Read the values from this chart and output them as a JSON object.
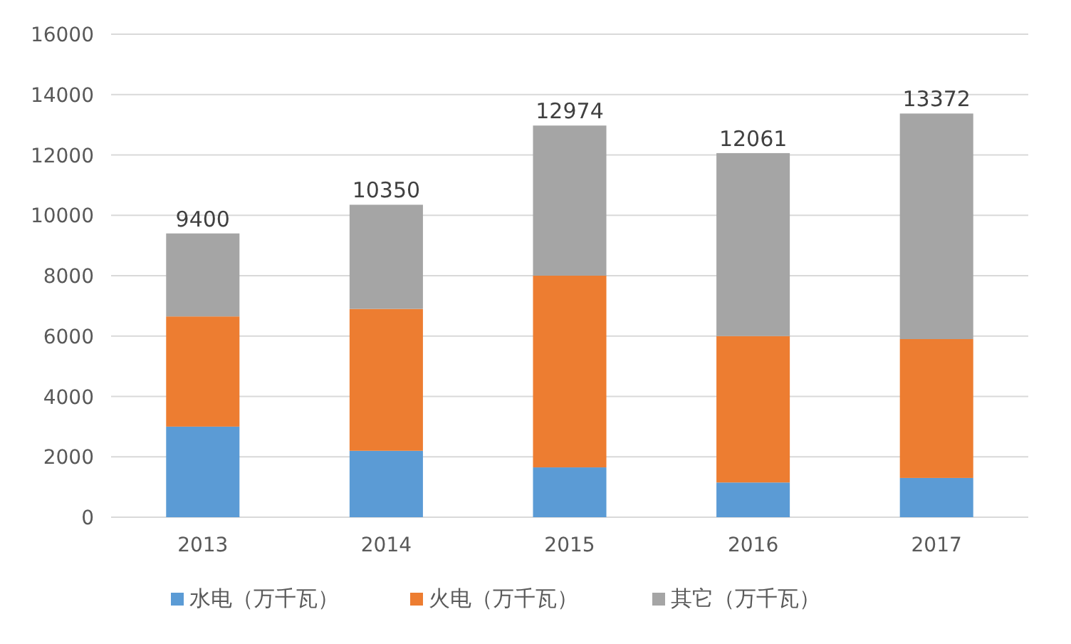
{
  "chart_data": {
    "type": "bar",
    "stacked": true,
    "categories": [
      "2013",
      "2014",
      "2015",
      "2016",
      "2017"
    ],
    "series": [
      {
        "name": "水电（万千瓦）",
        "color": "#5b9bd5",
        "values": [
          3000,
          2200,
          1650,
          1150,
          1300
        ]
      },
      {
        "name": "火电（万千瓦）",
        "color": "#ed7d31",
        "values": [
          3650,
          4700,
          6350,
          4850,
          4600
        ]
      },
      {
        "name": "其它（万千瓦）",
        "color": "#a5a5a5",
        "values": [
          2750,
          3450,
          4974,
          6061,
          7472
        ]
      }
    ],
    "totals": [
      "9400",
      "10350",
      "12974",
      "12061",
      "13372"
    ],
    "ylim": [
      0,
      16000
    ],
    "yticks": [
      0,
      2000,
      4000,
      6000,
      8000,
      10000,
      12000,
      14000,
      16000
    ],
    "grid": "y",
    "legend": "bottom"
  }
}
